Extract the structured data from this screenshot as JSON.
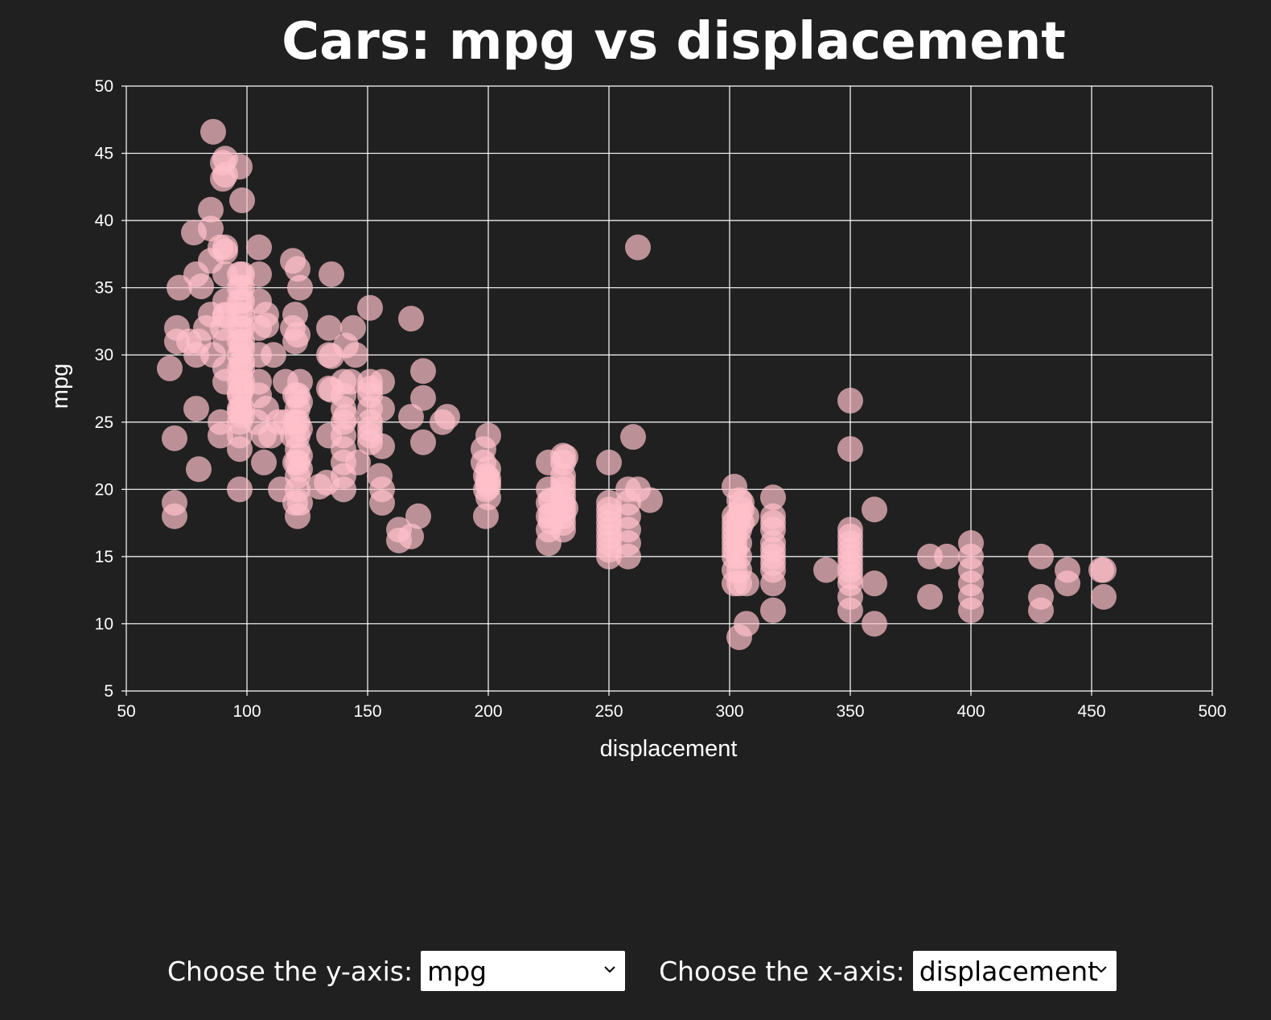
{
  "chart_data": {
    "type": "scatter",
    "title": "Cars: mpg vs displacement",
    "xlabel": "displacement",
    "ylabel": "mpg",
    "xlim": [
      50,
      500
    ],
    "ylim": [
      5,
      50
    ],
    "xticks": [
      "50",
      "100",
      "150",
      "200",
      "250",
      "300",
      "350",
      "400",
      "450",
      "500"
    ],
    "yticks": [
      "5",
      "10",
      "15",
      "20",
      "25",
      "30",
      "35",
      "40",
      "45",
      "50"
    ],
    "grid": true,
    "point_color": "#ffc0cb",
    "points": [
      [
        68,
        29
      ],
      [
        70,
        18
      ],
      [
        70,
        19
      ],
      [
        70,
        23.8
      ],
      [
        71,
        32
      ],
      [
        71,
        31
      ],
      [
        72,
        35
      ],
      [
        76,
        31
      ],
      [
        78,
        39.1
      ],
      [
        79,
        30
      ],
      [
        79,
        36
      ],
      [
        79,
        26
      ],
      [
        80,
        21.5
      ],
      [
        80,
        31
      ],
      [
        81,
        35.1
      ],
      [
        83,
        32
      ],
      [
        85,
        40.8
      ],
      [
        85,
        37
      ],
      [
        85,
        39.4
      ],
      [
        85,
        33
      ],
      [
        86,
        46.6
      ],
      [
        86,
        30
      ],
      [
        89,
        38
      ],
      [
        89,
        24
      ],
      [
        89,
        25
      ],
      [
        90,
        43.1
      ],
      [
        90,
        44.3
      ],
      [
        90,
        32
      ],
      [
        91,
        38
      ],
      [
        91,
        37.7
      ],
      [
        91,
        36
      ],
      [
        91,
        31
      ],
      [
        91,
        29
      ],
      [
        91,
        28
      ],
      [
        91,
        34
      ],
      [
        91,
        32.9
      ],
      [
        91,
        33
      ],
      [
        91,
        43.4
      ],
      [
        91,
        44.6
      ],
      [
        97,
        44
      ],
      [
        97,
        20
      ],
      [
        97,
        23
      ],
      [
        97,
        25
      ],
      [
        97,
        26
      ],
      [
        97,
        27
      ],
      [
        97,
        28
      ],
      [
        97,
        29
      ],
      [
        97,
        30
      ],
      [
        97,
        31
      ],
      [
        97,
        32
      ],
      [
        97,
        33
      ],
      [
        97,
        34
      ],
      [
        97,
        35
      ],
      [
        97,
        36
      ],
      [
        97,
        24
      ],
      [
        97,
        27.2
      ],
      [
        97,
        25.8
      ],
      [
        98,
        41.5
      ],
      [
        98,
        36
      ],
      [
        98,
        30.5
      ],
      [
        98,
        26
      ],
      [
        98,
        28
      ],
      [
        98,
        29
      ],
      [
        98,
        31
      ],
      [
        98,
        32
      ],
      [
        98,
        34
      ],
      [
        98,
        35
      ],
      [
        98,
        33
      ],
      [
        98,
        29.5
      ],
      [
        98,
        27.5
      ],
      [
        98,
        25.5
      ],
      [
        104,
        25
      ],
      [
        105,
        38
      ],
      [
        105,
        34
      ],
      [
        105,
        36
      ],
      [
        105,
        32
      ],
      [
        105,
        27
      ],
      [
        105,
        28
      ],
      [
        105,
        30
      ],
      [
        107,
        24
      ],
      [
        107,
        22
      ],
      [
        108,
        32.2
      ],
      [
        108,
        26
      ],
      [
        108,
        33
      ],
      [
        110,
        24
      ],
      [
        111,
        30
      ],
      [
        113,
        25
      ],
      [
        114,
        20
      ],
      [
        116,
        25
      ],
      [
        116,
        28
      ],
      [
        119,
        24
      ],
      [
        119,
        32
      ],
      [
        119,
        37
      ],
      [
        120,
        27
      ],
      [
        120,
        19
      ],
      [
        120,
        31
      ],
      [
        120,
        33
      ],
      [
        120,
        22
      ],
      [
        120,
        25
      ],
      [
        121,
        26
      ],
      [
        121,
        23
      ],
      [
        121,
        24
      ],
      [
        121,
        25
      ],
      [
        121,
        21
      ],
      [
        121,
        22
      ],
      [
        121,
        20
      ],
      [
        121,
        18
      ],
      [
        121,
        27
      ],
      [
        121,
        31.5
      ],
      [
        121,
        36.4
      ],
      [
        122,
        35
      ],
      [
        122,
        28
      ],
      [
        122,
        26.5
      ],
      [
        122,
        24.5
      ],
      [
        122,
        22.5
      ],
      [
        122,
        21.5
      ],
      [
        122,
        19
      ],
      [
        130,
        20.2
      ],
      [
        133,
        20.5
      ],
      [
        134,
        24
      ],
      [
        134,
        27.5
      ],
      [
        134,
        30
      ],
      [
        134,
        32
      ],
      [
        135,
        29.9
      ],
      [
        135,
        36
      ],
      [
        135,
        27.4
      ],
      [
        140,
        20
      ],
      [
        140,
        21
      ],
      [
        140,
        22
      ],
      [
        140,
        23
      ],
      [
        140,
        24
      ],
      [
        140,
        25
      ],
      [
        140,
        26
      ],
      [
        140,
        27
      ],
      [
        140,
        28
      ],
      [
        141,
        25.4
      ],
      [
        141,
        30.7
      ],
      [
        143,
        28
      ],
      [
        144,
        32
      ],
      [
        145,
        30
      ],
      [
        146,
        22
      ],
      [
        151,
        24
      ],
      [
        151,
        25
      ],
      [
        151,
        26
      ],
      [
        151,
        27
      ],
      [
        151,
        28
      ],
      [
        151,
        33.5
      ],
      [
        151,
        24.5
      ],
      [
        151,
        23.5
      ],
      [
        151,
        27.5
      ],
      [
        155,
        21
      ],
      [
        156,
        20
      ],
      [
        156,
        26
      ],
      [
        156,
        23.2
      ],
      [
        156,
        19
      ],
      [
        156,
        28
      ],
      [
        163,
        17
      ],
      [
        163,
        16.2
      ],
      [
        168,
        25.4
      ],
      [
        168,
        32.7
      ],
      [
        168,
        16.5
      ],
      [
        171,
        18
      ],
      [
        173,
        23.5
      ],
      [
        173,
        26.8
      ],
      [
        173,
        28.8
      ],
      [
        181,
        25
      ],
      [
        183,
        25.4
      ],
      [
        198,
        22
      ],
      [
        198,
        23
      ],
      [
        199,
        18
      ],
      [
        199,
        20
      ],
      [
        199,
        21
      ],
      [
        200,
        19.4
      ],
      [
        200,
        20.2
      ],
      [
        200,
        20.5
      ],
      [
        200,
        20.8
      ],
      [
        200,
        24
      ],
      [
        200,
        21.5
      ],
      [
        225,
        16
      ],
      [
        225,
        17
      ],
      [
        225,
        18
      ],
      [
        225,
        19
      ],
      [
        225,
        20
      ],
      [
        225,
        22
      ],
      [
        226,
        17.6
      ],
      [
        226,
        18.1
      ],
      [
        226,
        19.2
      ],
      [
        231,
        17
      ],
      [
        231,
        17.5
      ],
      [
        231,
        18
      ],
      [
        231,
        18.5
      ],
      [
        231,
        19
      ],
      [
        231,
        19.5
      ],
      [
        231,
        20
      ],
      [
        231,
        20.5
      ],
      [
        231,
        21
      ],
      [
        231,
        22
      ],
      [
        231,
        22.5
      ],
      [
        232,
        18.6
      ],
      [
        232,
        22.4
      ],
      [
        250,
        15
      ],
      [
        250,
        15.5
      ],
      [
        250,
        16
      ],
      [
        250,
        16.5
      ],
      [
        250,
        17
      ],
      [
        250,
        17.5
      ],
      [
        250,
        18
      ],
      [
        250,
        18.5
      ],
      [
        250,
        19
      ],
      [
        250,
        22
      ],
      [
        258,
        15
      ],
      [
        258,
        16
      ],
      [
        258,
        17
      ],
      [
        258,
        18
      ],
      [
        258,
        19
      ],
      [
        258,
        20
      ],
      [
        260,
        23.9
      ],
      [
        262,
        38
      ],
      [
        262,
        20
      ],
      [
        267,
        19.2
      ],
      [
        302,
        13
      ],
      [
        302,
        14
      ],
      [
        302,
        15
      ],
      [
        302,
        16
      ],
      [
        302,
        17
      ],
      [
        302,
        18
      ],
      [
        302,
        20.2
      ],
      [
        302,
        15.5
      ],
      [
        302,
        16.5
      ],
      [
        302,
        17.5
      ],
      [
        304,
        14
      ],
      [
        304,
        15
      ],
      [
        304,
        16
      ],
      [
        304,
        17
      ],
      [
        304,
        18
      ],
      [
        304,
        19.2
      ],
      [
        304,
        13
      ],
      [
        304,
        9
      ],
      [
        305,
        17.5
      ],
      [
        305,
        18.5
      ],
      [
        305,
        19
      ],
      [
        307,
        10
      ],
      [
        307,
        13
      ],
      [
        307,
        18
      ],
      [
        318,
        11
      ],
      [
        318,
        13
      ],
      [
        318,
        14
      ],
      [
        318,
        15
      ],
      [
        318,
        16
      ],
      [
        318,
        17
      ],
      [
        318,
        18
      ],
      [
        318,
        19.4
      ],
      [
        318,
        14.5
      ],
      [
        318,
        15.5
      ],
      [
        318,
        17.5
      ],
      [
        340,
        14
      ],
      [
        350,
        11
      ],
      [
        350,
        12
      ],
      [
        350,
        13
      ],
      [
        350,
        14
      ],
      [
        350,
        15
      ],
      [
        350,
        16
      ],
      [
        350,
        17
      ],
      [
        350,
        23
      ],
      [
        350,
        26.6
      ],
      [
        350,
        14.5
      ],
      [
        350,
        15.5
      ],
      [
        350,
        16.5
      ],
      [
        350,
        13.5
      ],
      [
        360,
        10
      ],
      [
        360,
        13
      ],
      [
        360,
        18.5
      ],
      [
        383,
        12
      ],
      [
        383,
        15
      ],
      [
        390,
        15
      ],
      [
        400,
        11
      ],
      [
        400,
        12
      ],
      [
        400,
        13
      ],
      [
        400,
        14
      ],
      [
        400,
        15
      ],
      [
        400,
        16
      ],
      [
        429,
        11
      ],
      [
        429,
        12
      ],
      [
        429,
        15
      ],
      [
        440,
        13
      ],
      [
        440,
        14
      ],
      [
        454,
        14
      ],
      [
        455,
        12
      ],
      [
        455,
        14
      ]
    ]
  },
  "controls": {
    "y_label": "Choose the y-axis:",
    "y_value": "mpg",
    "x_label": "Choose the x-axis:",
    "x_value": "displacement"
  }
}
